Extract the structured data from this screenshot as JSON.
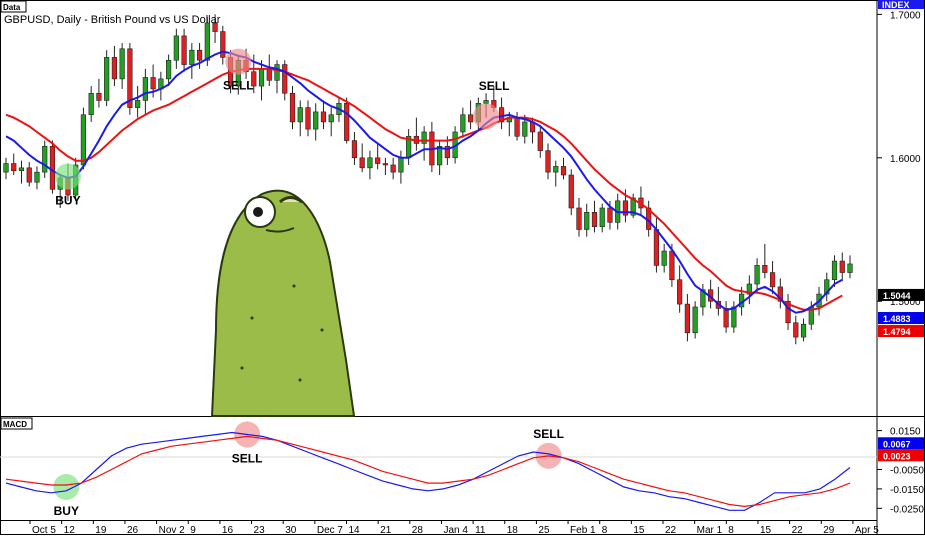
{
  "main_tag": "Data",
  "title": "GBPUSD, Daily - British Pound vs US Dollar",
  "index_tag": "INDEX",
  "macd_tag": "MACD",
  "colors": {
    "up": "#22a022",
    "down": "#e02020",
    "fast": "#1a1aee",
    "slow": "#ee1111",
    "buy_marker": "#7be07b",
    "sell_marker": "#f08a8a",
    "label_black": "#000000",
    "label_blue": "#0000ee",
    "label_red": "#ee0000",
    "character": "#9cbc4a"
  },
  "chart_data": [
    {
      "type": "candlestick",
      "title": "GBPUSD, Daily - British Pound vs US Dollar",
      "ylim": [
        1.42,
        1.71
      ],
      "y_ticks": [
        "1.7000",
        "1.6000",
        "1.5000"
      ],
      "x_tick_labels": [
        "Oct 5",
        "12",
        "19",
        "26",
        "Nov 2",
        "9",
        "16",
        "23",
        "30",
        "Dec 7",
        "14",
        "21",
        "28",
        "Jan 4",
        "11",
        "18",
        "25",
        "Feb 1",
        "8",
        "15",
        "22",
        "Mar 1",
        "8",
        "15",
        "22",
        "29",
        "Apr 5"
      ],
      "value_labels": [
        {
          "value": "1.5044",
          "color": "label_black"
        },
        {
          "value": "1.4883",
          "color": "label_blue"
        },
        {
          "value": "1.4794",
          "color": "label_red"
        }
      ],
      "candles": [
        [
          1.59,
          1.6,
          1.585,
          1.596
        ],
        [
          1.596,
          1.603,
          1.588,
          1.591
        ],
        [
          1.591,
          1.598,
          1.582,
          1.593
        ],
        [
          1.593,
          1.597,
          1.58,
          1.583
        ],
        [
          1.583,
          1.594,
          1.578,
          1.59
        ],
        [
          1.59,
          1.612,
          1.586,
          1.608
        ],
        [
          1.608,
          1.612,
          1.575,
          1.578
        ],
        [
          1.578,
          1.588,
          1.565,
          1.586
        ],
        [
          1.586,
          1.596,
          1.57,
          1.574
        ],
        [
          1.574,
          1.6,
          1.57,
          1.595
        ],
        [
          1.595,
          1.635,
          1.592,
          1.63
        ],
        [
          1.63,
          1.65,
          1.625,
          1.645
        ],
        [
          1.645,
          1.655,
          1.635,
          1.64
        ],
        [
          1.64,
          1.675,
          1.636,
          1.67
        ],
        [
          1.67,
          1.678,
          1.65,
          1.655
        ],
        [
          1.655,
          1.68,
          1.648,
          1.676
        ],
        [
          1.676,
          1.68,
          1.63,
          1.635
        ],
        [
          1.635,
          1.65,
          1.628,
          1.64
        ],
        [
          1.64,
          1.662,
          1.63,
          1.656
        ],
        [
          1.656,
          1.665,
          1.642,
          1.648
        ],
        [
          1.648,
          1.66,
          1.64,
          1.655
        ],
        [
          1.655,
          1.672,
          1.65,
          1.668
        ],
        [
          1.668,
          1.69,
          1.662,
          1.685
        ],
        [
          1.685,
          1.69,
          1.66,
          1.665
        ],
        [
          1.665,
          1.68,
          1.655,
          1.675
        ],
        [
          1.675,
          1.68,
          1.662,
          1.668
        ],
        [
          1.668,
          1.698,
          1.664,
          1.694
        ],
        [
          1.694,
          1.7,
          1.68,
          1.688
        ],
        [
          1.688,
          1.692,
          1.665,
          1.67
        ],
        [
          1.67,
          1.675,
          1.645,
          1.65
        ],
        [
          1.65,
          1.672,
          1.644,
          1.668
        ],
        [
          1.668,
          1.676,
          1.655,
          1.66
        ],
        [
          1.66,
          1.672,
          1.645,
          1.65
        ],
        [
          1.65,
          1.668,
          1.64,
          1.662
        ],
        [
          1.662,
          1.672,
          1.65,
          1.654
        ],
        [
          1.654,
          1.668,
          1.645,
          1.665
        ],
        [
          1.665,
          1.668,
          1.64,
          1.645
        ],
        [
          1.645,
          1.65,
          1.62,
          1.625
        ],
        [
          1.625,
          1.64,
          1.615,
          1.635
        ],
        [
          1.635,
          1.64,
          1.615,
          1.62
        ],
        [
          1.62,
          1.638,
          1.612,
          1.632
        ],
        [
          1.632,
          1.64,
          1.62,
          1.625
        ],
        [
          1.625,
          1.635,
          1.615,
          1.63
        ],
        [
          1.63,
          1.642,
          1.625,
          1.638
        ],
        [
          1.638,
          1.642,
          1.61,
          1.612
        ],
        [
          1.612,
          1.618,
          1.595,
          1.6
        ],
        [
          1.6,
          1.61,
          1.59,
          1.593
        ],
        [
          1.593,
          1.605,
          1.585,
          1.6
        ],
        [
          1.6,
          1.61,
          1.592,
          1.596
        ],
        [
          1.596,
          1.6,
          1.588,
          1.595
        ],
        [
          1.595,
          1.6,
          1.585,
          1.59
        ],
        [
          1.59,
          1.605,
          1.582,
          1.6
        ],
        [
          1.6,
          1.62,
          1.595,
          1.615
        ],
        [
          1.615,
          1.628,
          1.605,
          1.61
        ],
        [
          1.61,
          1.622,
          1.598,
          1.618
        ],
        [
          1.618,
          1.625,
          1.59,
          1.595
        ],
        [
          1.595,
          1.612,
          1.588,
          1.608
        ],
        [
          1.608,
          1.615,
          1.595,
          1.6
        ],
        [
          1.6,
          1.622,
          1.596,
          1.618
        ],
        [
          1.618,
          1.635,
          1.614,
          1.63
        ],
        [
          1.63,
          1.64,
          1.62,
          1.625
        ],
        [
          1.625,
          1.642,
          1.62,
          1.638
        ],
        [
          1.638,
          1.645,
          1.628,
          1.64
        ],
        [
          1.64,
          1.65,
          1.632,
          1.635
        ],
        [
          1.635,
          1.642,
          1.62,
          1.625
        ],
        [
          1.625,
          1.632,
          1.615,
          1.628
        ],
        [
          1.628,
          1.632,
          1.612,
          1.615
        ],
        [
          1.615,
          1.63,
          1.61,
          1.625
        ],
        [
          1.625,
          1.628,
          1.61,
          1.618
        ],
        [
          1.618,
          1.622,
          1.6,
          1.605
        ],
        [
          1.605,
          1.61,
          1.585,
          1.59
        ],
        [
          1.59,
          1.598,
          1.58,
          1.594
        ],
        [
          1.594,
          1.6,
          1.585,
          1.588
        ],
        [
          1.588,
          1.592,
          1.56,
          1.565
        ],
        [
          1.565,
          1.572,
          1.545,
          1.55
        ],
        [
          1.55,
          1.568,
          1.545,
          1.562
        ],
        [
          1.562,
          1.57,
          1.548,
          1.552
        ],
        [
          1.552,
          1.568,
          1.548,
          1.565
        ],
        [
          1.565,
          1.57,
          1.55,
          1.555
        ],
        [
          1.555,
          1.575,
          1.55,
          1.57
        ],
        [
          1.57,
          1.578,
          1.555,
          1.56
        ],
        [
          1.56,
          1.575,
          1.558,
          1.572
        ],
        [
          1.572,
          1.58,
          1.56,
          1.565
        ],
        [
          1.565,
          1.57,
          1.545,
          1.55
        ],
        [
          1.55,
          1.558,
          1.52,
          1.525
        ],
        [
          1.525,
          1.54,
          1.52,
          1.535
        ],
        [
          1.535,
          1.54,
          1.51,
          1.515
        ],
        [
          1.515,
          1.525,
          1.492,
          1.498
        ],
        [
          1.498,
          1.505,
          1.472,
          1.478
        ],
        [
          1.478,
          1.5,
          1.474,
          1.496
        ],
        [
          1.496,
          1.512,
          1.49,
          1.508
        ],
        [
          1.508,
          1.515,
          1.495,
          1.5
        ],
        [
          1.5,
          1.51,
          1.49,
          1.495
        ],
        [
          1.495,
          1.5,
          1.478,
          1.482
        ],
        [
          1.482,
          1.5,
          1.478,
          1.496
        ],
        [
          1.496,
          1.51,
          1.49,
          1.505
        ],
        [
          1.505,
          1.518,
          1.498,
          1.512
        ],
        [
          1.512,
          1.53,
          1.506,
          1.525
        ],
        [
          1.525,
          1.54,
          1.516,
          1.52
        ],
        [
          1.52,
          1.528,
          1.505,
          1.51
        ],
        [
          1.51,
          1.516,
          1.495,
          1.5
        ],
        [
          1.5,
          1.505,
          1.48,
          1.485
        ],
        [
          1.485,
          1.49,
          1.47,
          1.475
        ],
        [
          1.475,
          1.488,
          1.472,
          1.484
        ],
        [
          1.484,
          1.5,
          1.48,
          1.496
        ],
        [
          1.496,
          1.51,
          1.49,
          1.505
        ],
        [
          1.505,
          1.52,
          1.5,
          1.515
        ],
        [
          1.515,
          1.532,
          1.51,
          1.528
        ],
        [
          1.528,
          1.534,
          1.514,
          1.52
        ],
        [
          1.52,
          1.532,
          1.516,
          1.526
        ]
      ],
      "ma_fast": [
        1.615,
        1.612,
        1.607,
        1.602,
        1.598,
        1.595,
        1.591,
        1.588,
        1.586,
        1.587,
        1.594,
        1.603,
        1.612,
        1.622,
        1.63,
        1.637,
        1.64,
        1.642,
        1.645,
        1.646,
        1.648,
        1.651,
        1.657,
        1.661,
        1.664,
        1.666,
        1.669,
        1.672,
        1.674,
        1.673,
        1.671,
        1.67,
        1.667,
        1.665,
        1.663,
        1.662,
        1.66,
        1.656,
        1.652,
        1.647,
        1.643,
        1.639,
        1.636,
        1.634,
        1.631,
        1.626,
        1.62,
        1.614,
        1.61,
        1.606,
        1.602,
        1.6,
        1.6,
        1.603,
        1.606,
        1.606,
        1.607,
        1.606,
        1.608,
        1.612,
        1.615,
        1.619,
        1.624,
        1.628,
        1.629,
        1.63,
        1.628,
        1.627,
        1.625,
        1.622,
        1.617,
        1.612,
        1.607,
        1.601,
        1.593,
        1.585,
        1.578,
        1.572,
        1.566,
        1.562,
        1.562,
        1.562,
        1.56,
        1.556,
        1.55,
        1.543,
        1.536,
        1.528,
        1.519,
        1.511,
        1.507,
        1.503,
        1.498,
        1.494,
        1.495,
        1.499,
        1.503,
        1.508,
        1.51,
        1.507,
        1.502,
        1.495,
        1.492,
        1.493,
        1.496,
        1.5,
        1.506,
        1.512,
        1.515
      ],
      "ma_slow": [
        1.63,
        1.628,
        1.625,
        1.622,
        1.618,
        1.614,
        1.61,
        1.605,
        1.601,
        1.598,
        1.598,
        1.6,
        1.604,
        1.609,
        1.614,
        1.619,
        1.623,
        1.627,
        1.63,
        1.633,
        1.635,
        1.637,
        1.64,
        1.643,
        1.646,
        1.649,
        1.652,
        1.655,
        1.658,
        1.66,
        1.661,
        1.662,
        1.662,
        1.662,
        1.662,
        1.661,
        1.66,
        1.658,
        1.656,
        1.654,
        1.651,
        1.648,
        1.645,
        1.642,
        1.639,
        1.636,
        1.632,
        1.628,
        1.624,
        1.62,
        1.617,
        1.614,
        1.613,
        1.612,
        1.612,
        1.612,
        1.612,
        1.612,
        1.613,
        1.615,
        1.617,
        1.619,
        1.621,
        1.624,
        1.626,
        1.628,
        1.628,
        1.628,
        1.627,
        1.625,
        1.622,
        1.619,
        1.615,
        1.61,
        1.604,
        1.598,
        1.592,
        1.587,
        1.582,
        1.578,
        1.574,
        1.571,
        1.568,
        1.564,
        1.559,
        1.554,
        1.548,
        1.542,
        1.536,
        1.53,
        1.525,
        1.521,
        1.516,
        1.511,
        1.508,
        1.507,
        1.506,
        1.506,
        1.505,
        1.503,
        1.501,
        1.498,
        1.496,
        1.494,
        1.494,
        1.495,
        1.498,
        1.501,
        1.504
      ],
      "signals": [
        {
          "label": "BUY",
          "candle": 8,
          "value": 1.587,
          "kind": "buy",
          "text_side": "below"
        },
        {
          "label": "SELL",
          "candle": 30,
          "value": 1.667,
          "kind": "sell",
          "text_side": "below"
        },
        {
          "label": "SELL",
          "candle": 62,
          "value": 1.629,
          "kind": "sell",
          "text_side": "above"
        }
      ]
    },
    {
      "type": "line",
      "title": "MACD",
      "ylim": [
        -0.031,
        0.022
      ],
      "y_ticks": [
        "0.0150",
        "-0.0050",
        "-0.0150",
        "-0.0250"
      ],
      "value_labels": [
        {
          "value": "0.0023",
          "color": "label_red"
        },
        {
          "value": "0.0067",
          "color": "label_blue"
        }
      ],
      "series": [
        {
          "values": [
            -0.012,
            -0.014,
            -0.016,
            -0.017,
            -0.016,
            -0.012,
            -0.005,
            0.002,
            0.006,
            0.008,
            0.009,
            0.01,
            0.011,
            0.012,
            0.013,
            0.014,
            0.013,
            0.012,
            0.01,
            0.007,
            0.004,
            0.001,
            -0.002,
            -0.005,
            -0.008,
            -0.011,
            -0.013,
            -0.015,
            -0.016,
            -0.015,
            -0.013,
            -0.01,
            -0.006,
            -0.002,
            0.002,
            0.004,
            0.003,
            0.001,
            -0.002,
            -0.006,
            -0.01,
            -0.014,
            -0.016,
            -0.017,
            -0.019,
            -0.02,
            -0.022,
            -0.024,
            -0.026,
            -0.026,
            -0.022,
            -0.017,
            -0.017,
            -0.017,
            -0.015,
            -0.01,
            -0.004
          ],
          "color": "fast"
        },
        {
          "values": [
            -0.01,
            -0.011,
            -0.012,
            -0.013,
            -0.013,
            -0.012,
            -0.009,
            -0.005,
            -0.001,
            0.003,
            0.005,
            0.007,
            0.008,
            0.009,
            0.01,
            0.011,
            0.012,
            0.011,
            0.01,
            0.008,
            0.006,
            0.004,
            0.002,
            0.0,
            -0.003,
            -0.006,
            -0.008,
            -0.01,
            -0.012,
            -0.012,
            -0.011,
            -0.01,
            -0.008,
            -0.005,
            -0.002,
            0.001,
            0.002,
            0.001,
            -0.001,
            -0.004,
            -0.007,
            -0.01,
            -0.012,
            -0.014,
            -0.016,
            -0.017,
            -0.019,
            -0.021,
            -0.023,
            -0.024,
            -0.023,
            -0.021,
            -0.019,
            -0.018,
            -0.017,
            -0.015,
            -0.012
          ],
          "color": "slow"
        }
      ],
      "signals": [
        {
          "label": "BUY",
          "index": 4,
          "value": -0.014,
          "kind": "buy",
          "text_side": "below"
        },
        {
          "label": "SELL",
          "index": 16,
          "value": 0.013,
          "kind": "sell",
          "text_side": "below"
        },
        {
          "label": "SELL",
          "index": 36,
          "value": 0.002,
          "kind": "sell",
          "text_side": "above"
        }
      ]
    }
  ]
}
